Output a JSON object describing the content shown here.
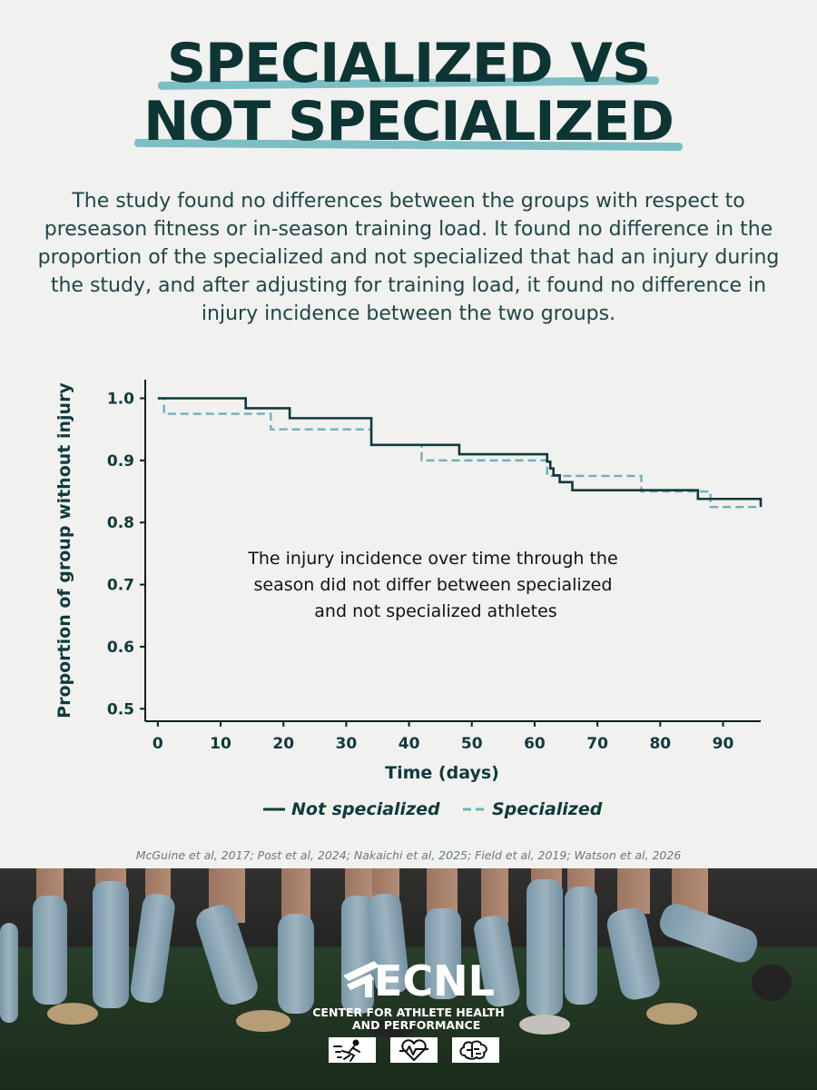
{
  "title": {
    "line1": "SPECIALIZED VS",
    "line2": "NOT SPECIALIZED"
  },
  "lead": "The study found no differences between the groups with respect to preseason fitness or in-season training load. It found no difference in the proportion of the specialized and not specialized that had an injury during the study, and after adjusting for training load, it found no difference in injury incidence between the two groups.",
  "chart_data": {
    "type": "line",
    "step": true,
    "xlabel": "Time (days)",
    "ylabel": "Proportion of group without injury",
    "xlim": [
      -2,
      96
    ],
    "ylim": [
      0.48,
      1.03
    ],
    "xticks": [
      0,
      10,
      20,
      30,
      40,
      50,
      60,
      70,
      80,
      90
    ],
    "yticks": [
      0.5,
      0.6,
      0.7,
      0.8,
      0.9,
      1.0
    ],
    "ytick_labels": [
      "0.5",
      "0.6",
      "0.7",
      "0.8",
      "0.9",
      "1.0"
    ],
    "annotation": [
      "The injury incidence over time through the",
      "season did not differ between specialized",
      "and not specialized athletes"
    ],
    "legend_position": "bottom",
    "series": [
      {
        "name": "Not specialized",
        "style": "solid",
        "color": "#0f3b3a",
        "x": [
          0,
          14,
          21,
          34,
          48,
          62,
          62.5,
          63,
          64,
          66,
          86,
          96
        ],
        "y": [
          1.0,
          0.984,
          0.968,
          0.925,
          0.91,
          0.898,
          0.887,
          0.876,
          0.865,
          0.852,
          0.838,
          0.825
        ]
      },
      {
        "name": "Specialized",
        "style": "dashed",
        "color": "#6fb0b8",
        "x": [
          0,
          1,
          18,
          34,
          42,
          62,
          77,
          88,
          96
        ],
        "y": [
          1.0,
          0.975,
          0.95,
          0.925,
          0.9,
          0.875,
          0.85,
          0.825,
          0.825
        ]
      }
    ]
  },
  "references": "McGuine et al, 2017; Post et al, 2024; Nakaichi et al, 2025; Field et al, 2019; Watson et al, 2026",
  "logo": {
    "name": "ECNL",
    "subtitle_line1": "CENTER FOR ATHLETE HEALTH",
    "subtitle_line2": "AND PERFORMANCE"
  },
  "colors": {
    "accent": "#6fb8bf",
    "dark": "#0c3534",
    "background": "#f1f1f0"
  }
}
